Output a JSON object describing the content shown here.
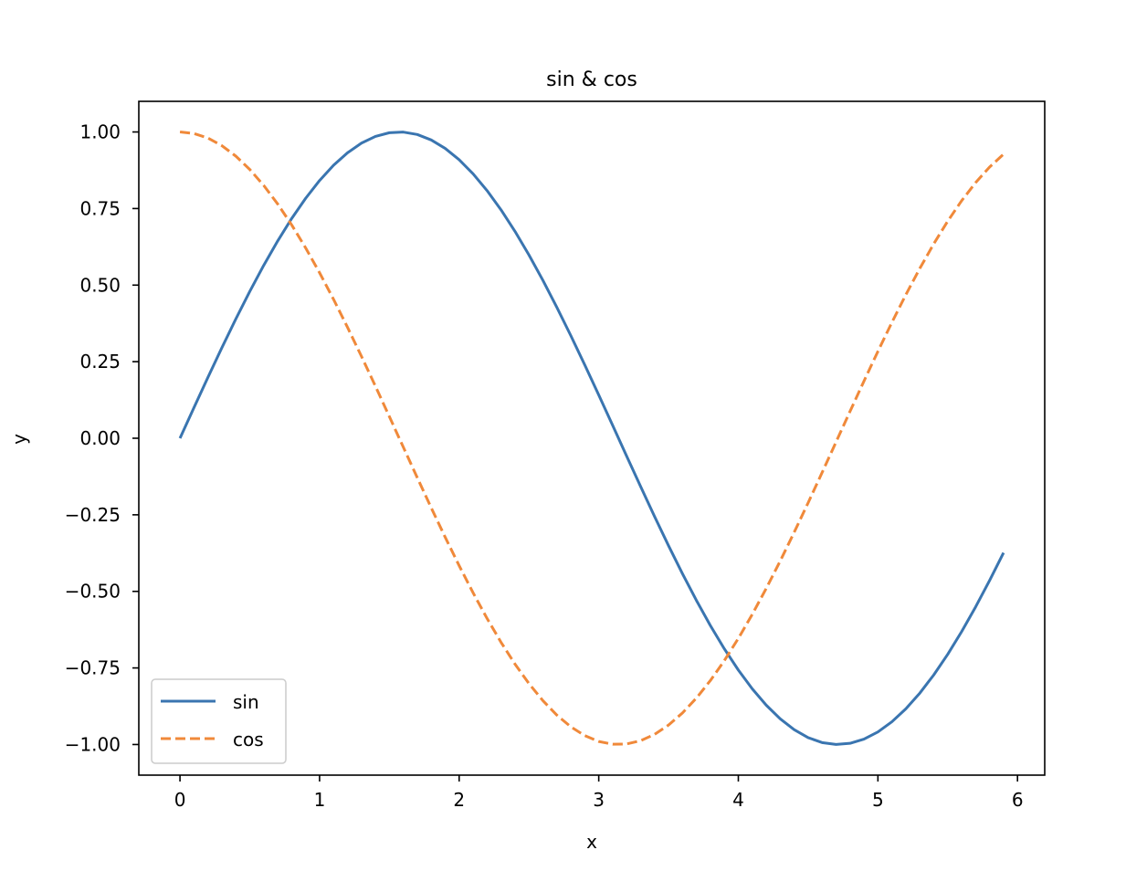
{
  "chart_data": {
    "type": "line",
    "title": "sin & cos",
    "xlabel": "x",
    "ylabel": "y",
    "xlim": [
      -0.295,
      6.195
    ],
    "ylim": [
      -1.1,
      1.1
    ],
    "x_ticks": [
      0,
      1,
      2,
      3,
      4,
      5,
      6
    ],
    "x_tick_labels": [
      "0",
      "1",
      "2",
      "3",
      "4",
      "5",
      "6"
    ],
    "y_ticks": [
      1.0,
      0.75,
      0.5,
      0.25,
      0.0,
      -0.25,
      -0.5,
      -0.75,
      -1.0
    ],
    "y_tick_labels": [
      "1.00",
      "0.75",
      "0.50",
      "0.25",
      "0.00",
      "−0.25",
      "−0.50",
      "−0.75",
      "−1.00"
    ],
    "grid": false,
    "legend": {
      "placement": "lower-left"
    },
    "series": [
      {
        "name": "sin",
        "color": "#3a75b0",
        "line_style": "solid",
        "x": [
          0.0,
          0.1,
          0.2,
          0.3,
          0.4,
          0.5,
          0.6,
          0.7,
          0.8,
          0.9,
          1.0,
          1.1,
          1.2,
          1.3,
          1.4,
          1.5,
          1.6,
          1.7,
          1.8,
          1.9,
          2.0,
          2.1,
          2.2,
          2.3,
          2.4,
          2.5,
          2.6,
          2.7,
          2.8,
          2.9,
          3.0,
          3.1,
          3.2,
          3.3,
          3.4,
          3.5,
          3.6,
          3.7,
          3.8,
          3.9,
          4.0,
          4.1,
          4.2,
          4.3,
          4.4,
          4.5,
          4.6,
          4.7,
          4.8,
          4.9,
          5.0,
          5.1,
          5.2,
          5.3,
          5.4,
          5.5,
          5.6,
          5.7,
          5.8,
          5.9
        ],
        "values": [
          0.0,
          0.0998,
          0.1987,
          0.2955,
          0.3894,
          0.4794,
          0.5646,
          0.6442,
          0.7174,
          0.7833,
          0.8415,
          0.8912,
          0.932,
          0.9636,
          0.9854,
          0.9975,
          0.9996,
          0.9917,
          0.9738,
          0.9463,
          0.9093,
          0.8632,
          0.8085,
          0.7457,
          0.6755,
          0.5985,
          0.5155,
          0.4274,
          0.335,
          0.2392,
          0.1411,
          0.0416,
          -0.0584,
          -0.1577,
          -0.2555,
          -0.3508,
          -0.4425,
          -0.5298,
          -0.6119,
          -0.6878,
          -0.7568,
          -0.8183,
          -0.8716,
          -0.9162,
          -0.9516,
          -0.9775,
          -0.9937,
          -0.9999,
          -0.9962,
          -0.9825,
          -0.9589,
          -0.9258,
          -0.8835,
          -0.8323,
          -0.7728,
          -0.7055,
          -0.6313,
          -0.5507,
          -0.4646,
          -0.3739
        ]
      },
      {
        "name": "cos",
        "color": "#f0893a",
        "line_style": "dashed",
        "x": [
          0.0,
          0.1,
          0.2,
          0.3,
          0.4,
          0.5,
          0.6,
          0.7,
          0.8,
          0.9,
          1.0,
          1.1,
          1.2,
          1.3,
          1.4,
          1.5,
          1.6,
          1.7,
          1.8,
          1.9,
          2.0,
          2.1,
          2.2,
          2.3,
          2.4,
          2.5,
          2.6,
          2.7,
          2.8,
          2.9,
          3.0,
          3.1,
          3.2,
          3.3,
          3.4,
          3.5,
          3.6,
          3.7,
          3.8,
          3.9,
          4.0,
          4.1,
          4.2,
          4.3,
          4.4,
          4.5,
          4.6,
          4.7,
          4.8,
          4.9,
          5.0,
          5.1,
          5.2,
          5.3,
          5.4,
          5.5,
          5.6,
          5.7,
          5.8,
          5.9
        ],
        "values": [
          1.0,
          0.995,
          0.9801,
          0.9553,
          0.9211,
          0.8776,
          0.8253,
          0.7648,
          0.6967,
          0.6216,
          0.5403,
          0.4536,
          0.3624,
          0.2675,
          0.17,
          0.0707,
          -0.0292,
          -0.1288,
          -0.2272,
          -0.3233,
          -0.4161,
          -0.5048,
          -0.5885,
          -0.6663,
          -0.7374,
          -0.8011,
          -0.8569,
          -0.9041,
          -0.9422,
          -0.971,
          -0.99,
          -0.9991,
          -0.9983,
          -0.9875,
          -0.9668,
          -0.9365,
          -0.8968,
          -0.8481,
          -0.791,
          -0.7259,
          -0.6536,
          -0.5748,
          -0.4903,
          -0.4008,
          -0.3073,
          -0.2108,
          -0.1122,
          -0.0124,
          0.0875,
          0.1865,
          0.2837,
          0.378,
          0.4685,
          0.5544,
          0.6347,
          0.7087,
          0.7756,
          0.8347,
          0.8855,
          0.9275
        ]
      }
    ]
  }
}
